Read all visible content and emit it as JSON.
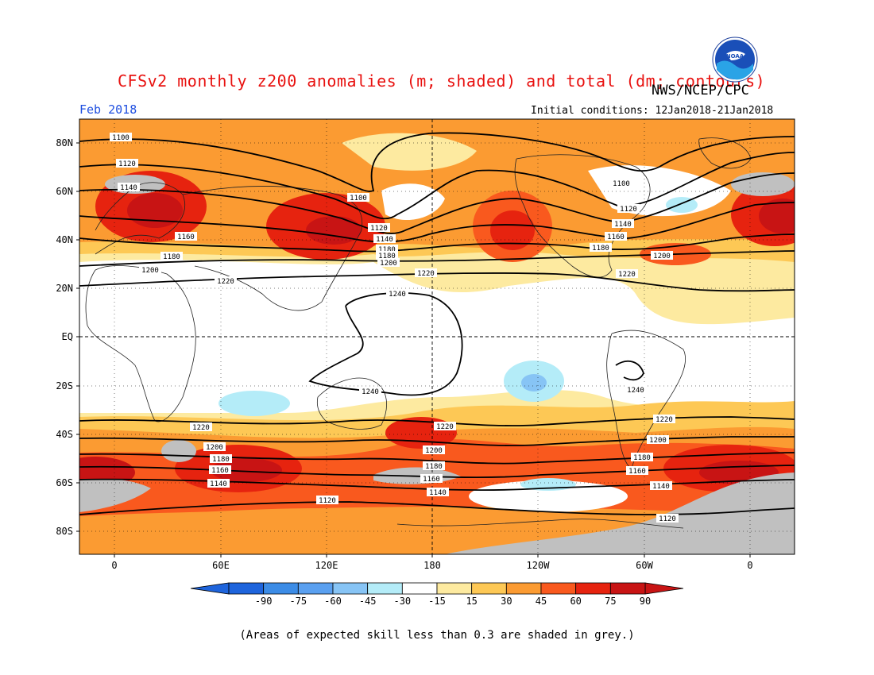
{
  "header": {
    "title": "CFSv2 monthly z200 anomalies (m; shaded) and total (dm; contours)",
    "credit": "NWS/NCEP/CPC",
    "month": "Feb 2018",
    "initial_conditions": "Initial conditions: 12Jan2018-21Jan2018",
    "logo_text": "NOAA"
  },
  "axes": {
    "lat_labels": [
      "80N",
      "60N",
      "40N",
      "20N",
      "EQ",
      "20S",
      "40S",
      "60S",
      "80S"
    ],
    "lon_labels": [
      "0",
      "60E",
      "120E",
      "180",
      "120W",
      "60W",
      "0"
    ]
  },
  "colorbar": {
    "ticks": [
      "-90",
      "-75",
      "-60",
      "-45",
      "-30",
      "-15",
      "15",
      "30",
      "45",
      "60",
      "75",
      "90"
    ],
    "colors": [
      "#1e64dc",
      "#3c8ce6",
      "#5aa0f0",
      "#87c4f5",
      "#b4ecf8",
      "#ffffff",
      "#fdeaa0",
      "#fdc855",
      "#fb9b32",
      "#f9591e",
      "#e6230f",
      "#c81414"
    ]
  },
  "contour_labels": [
    "1100",
    "1120",
    "1140",
    "1160",
    "1180",
    "1200",
    "1220",
    "1240"
  ],
  "footnote": "(Areas of expected skill less than 0.3 are shaded in grey.)",
  "colors": {
    "title": "#e8110f",
    "month": "#1f4fe0",
    "low_skill": "#c0c0c0"
  }
}
